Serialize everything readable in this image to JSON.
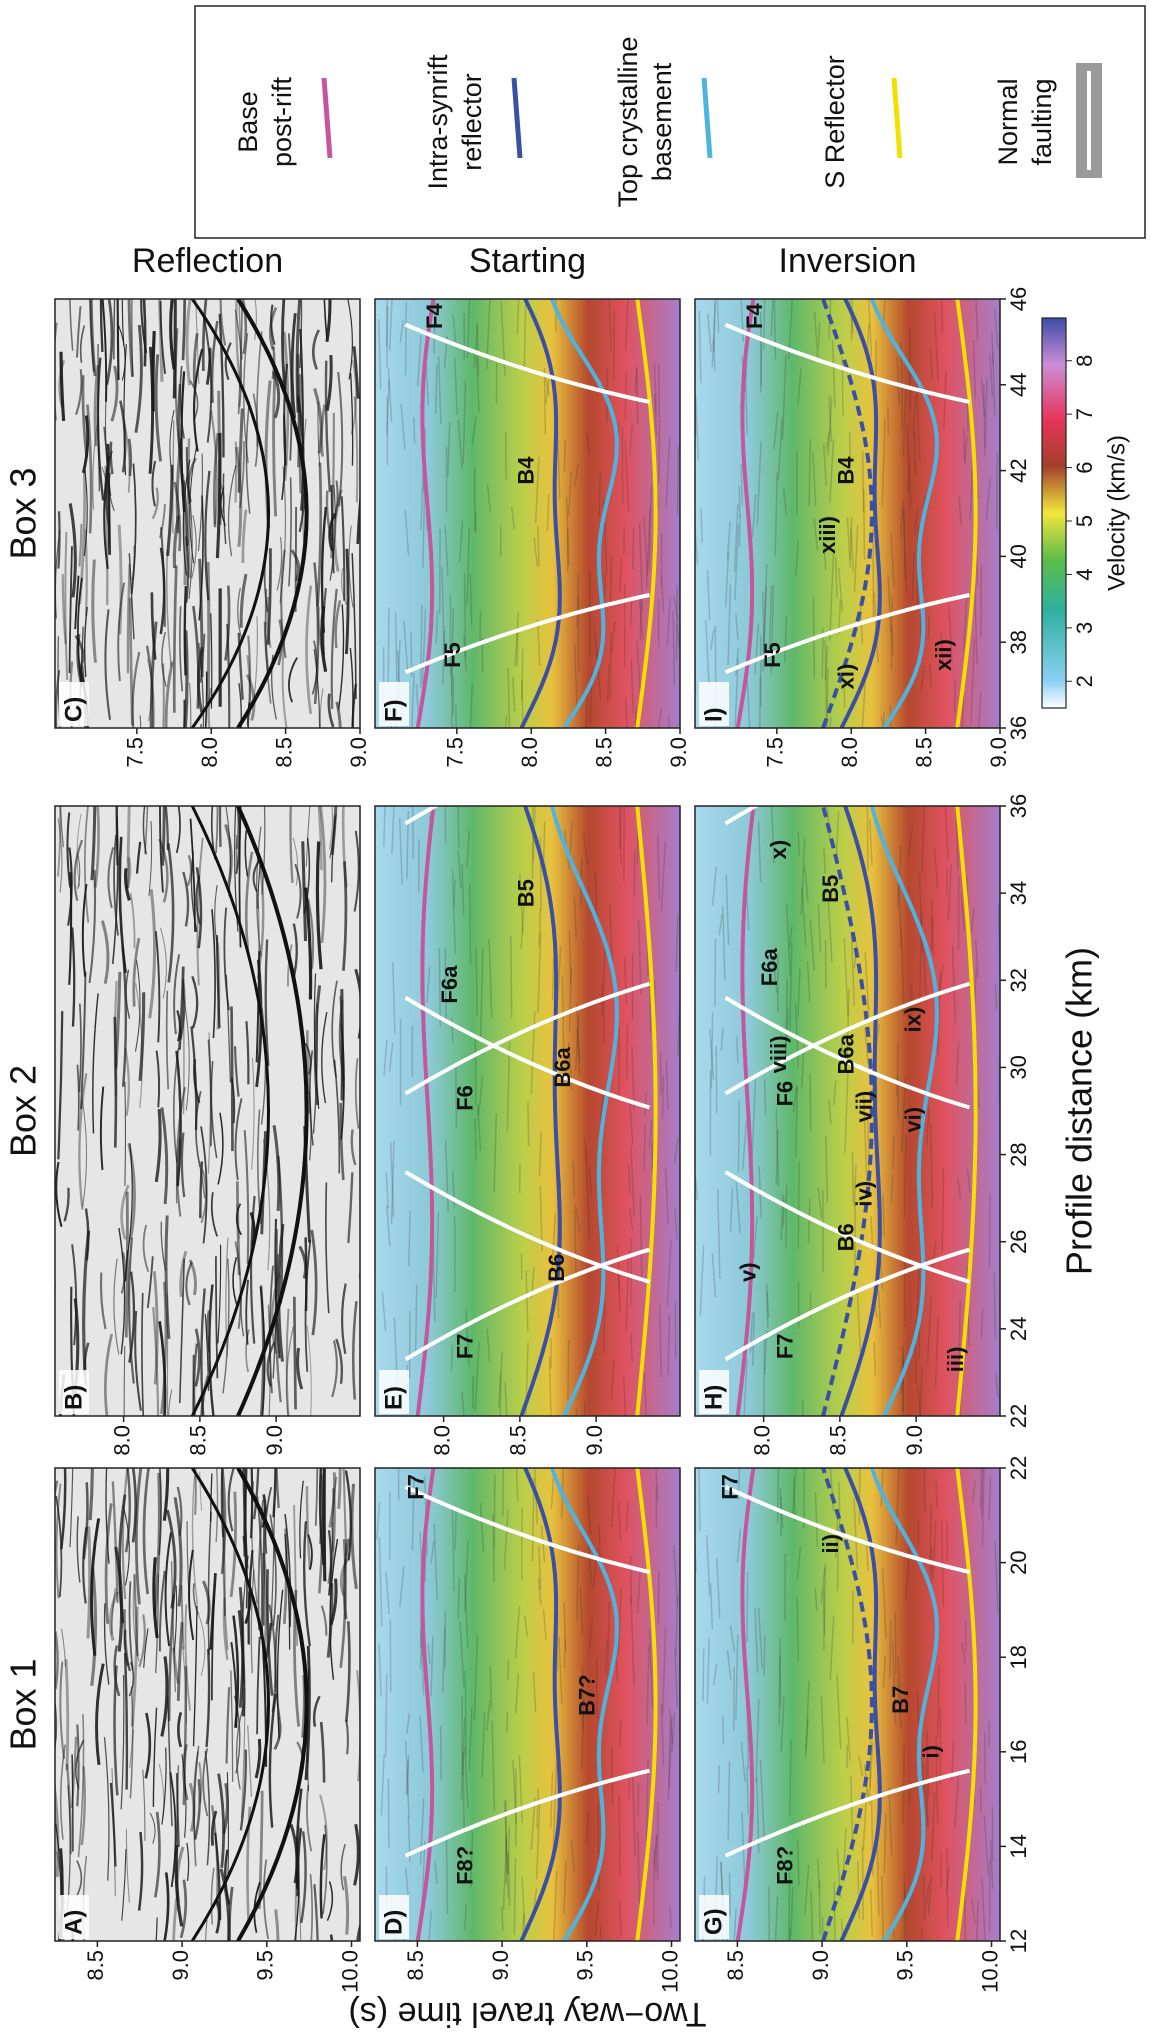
{
  "y_axis_title": "Two−way travel time (s)",
  "x_axis_title": "Profile distance (km)",
  "rows": [
    "Reflection",
    "Starting",
    "Inversion"
  ],
  "boxes": [
    {
      "title": "Box 1",
      "xlim": [
        12,
        22
      ],
      "xticks": [
        12,
        14,
        16,
        18,
        20,
        22
      ],
      "ylim": [
        8.25,
        10.05
      ],
      "yticks": [
        8.5,
        {
          "value": 9,
          "label": "9.0"
        },
        9.5,
        {
          "value": 10,
          "label": "10.0"
        }
      ],
      "panels": [
        {
          "label": "A)",
          "annotations": []
        },
        {
          "label": "D)",
          "annotations": [
            "F8?",
            "F7",
            "B7?"
          ]
        },
        {
          "label": "G)",
          "annotations": [
            "F8?",
            "F7",
            "ii)",
            "i)",
            "B7"
          ]
        }
      ]
    },
    {
      "title": "Box 2",
      "xlim": [
        22,
        36
      ],
      "xticks": [
        22,
        24,
        26,
        28,
        30,
        32,
        34,
        36
      ],
      "ylim": [
        7.55,
        9.55
      ],
      "yticks": [
        {
          "value": 8,
          "label": "8.0"
        },
        8.5,
        {
          "value": 9,
          "label": "9.0"
        }
      ],
      "panels": [
        {
          "label": "B)",
          "annotations": []
        },
        {
          "label": "E)",
          "annotations": [
            "F7",
            "B6",
            "F6",
            "B6a",
            "F6a",
            "B5"
          ]
        },
        {
          "label": "H)",
          "annotations": [
            "F7",
            "v)",
            "B6",
            "iii)",
            "iv)",
            "vi)",
            "F6",
            "viii)",
            "B6a",
            "vii)",
            "ix)",
            "F6a",
            "B5",
            "x)"
          ]
        }
      ]
    },
    {
      "title": "Box 3",
      "xlim": [
        36,
        46
      ],
      "xticks": [
        36,
        38,
        40,
        42,
        44,
        46
      ],
      "ylim": [
        6.95,
        9.0
      ],
      "yticks": [
        7.5,
        {
          "value": 8,
          "label": "8.0"
        },
        8.5,
        {
          "value": 9,
          "label": "9.0"
        }
      ],
      "panels": [
        {
          "label": "C)",
          "annotations": []
        },
        {
          "label": "F)",
          "annotations": [
            "F5",
            "B4",
            "F4"
          ]
        },
        {
          "label": "I)",
          "annotations": [
            "F5",
            "xi)",
            "xii)",
            "xiii)",
            "B4",
            "F4"
          ]
        }
      ]
    }
  ],
  "legend": [
    {
      "lines": [
        "Base",
        "post-rift"
      ],
      "color": "#c4579b"
    },
    {
      "lines": [
        "Intra-synrift",
        "reflector"
      ],
      "color": "#3b4fa3"
    },
    {
      "lines": [
        "Top crystalline",
        "basement"
      ],
      "color": "#4fb3e0"
    },
    {
      "lines": [
        "S Reflector"
      ],
      "color": "#f2e000"
    },
    {
      "lines": [
        "Normal",
        "faulting"
      ],
      "color": "#9a9a9a"
    }
  ],
  "colorbar": {
    "title": "Velocity (km/s)",
    "clim": [
      1.5,
      8.8
    ],
    "ticks": [
      2,
      3,
      4,
      5,
      6,
      7,
      8
    ]
  }
}
